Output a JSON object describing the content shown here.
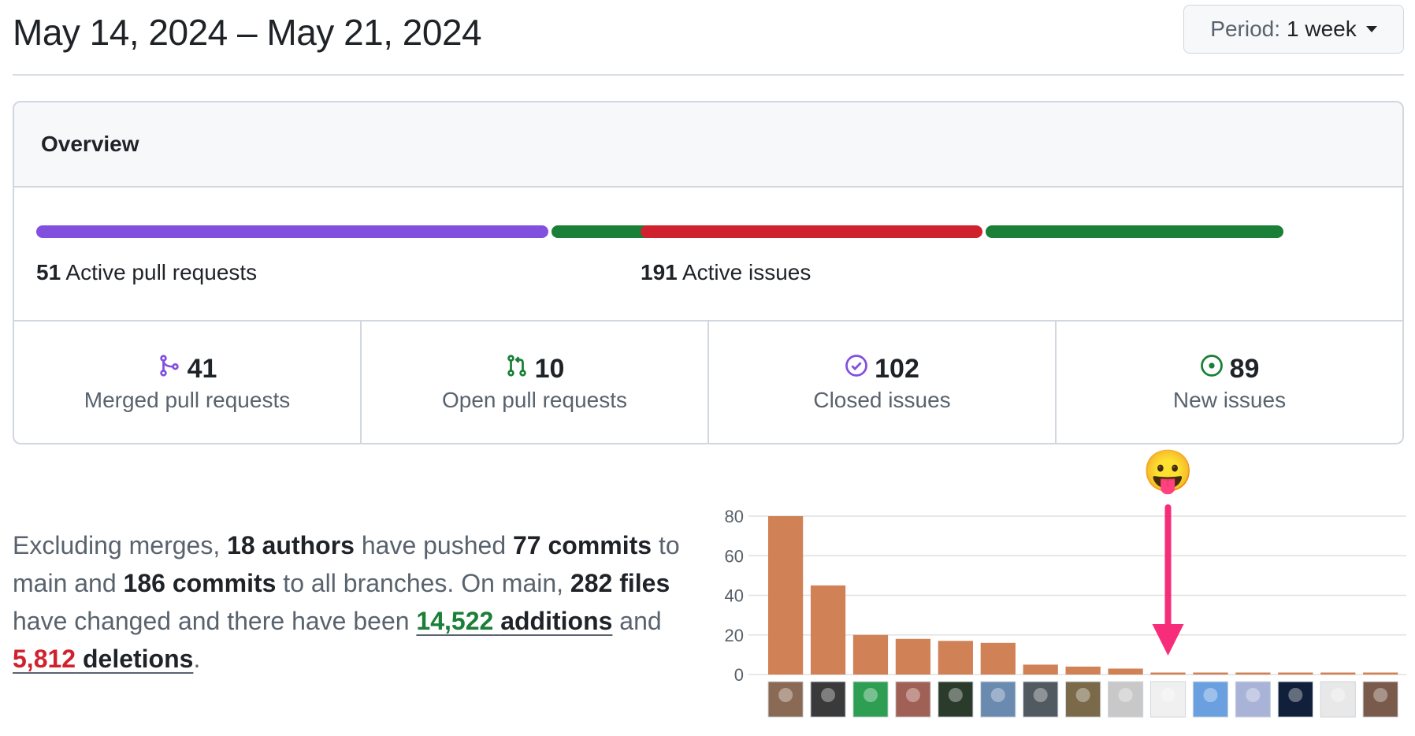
{
  "header": {
    "title": "May 14, 2024 – May 21, 2024",
    "period_label": "Period:",
    "period_value": "1 week"
  },
  "overview": {
    "title": "Overview",
    "pull_requests": {
      "count": "51",
      "label": "Active pull requests",
      "merged_fraction": 0.8,
      "colors": {
        "merged": "#8250df",
        "open": "#1a7f37"
      }
    },
    "issues": {
      "count": "191",
      "label": "Active issues",
      "closed_fraction": 0.534,
      "colors": {
        "closed": "#cf222e",
        "new": "#1a7f37"
      }
    },
    "stats": [
      {
        "icon": "merged-pr-icon",
        "value": "41",
        "label": "Merged pull requests",
        "color": "#8250df"
      },
      {
        "icon": "open-pr-icon",
        "value": "10",
        "label": "Open pull requests",
        "color": "#1a7f37"
      },
      {
        "icon": "closed-issue-icon",
        "value": "102",
        "label": "Closed issues",
        "color": "#8250df"
      },
      {
        "icon": "new-issue-icon",
        "value": "89",
        "label": "New issues",
        "color": "#1a7f37"
      }
    ]
  },
  "summary": {
    "t1": "Excluding merges, ",
    "authors": "18 authors",
    "t2": " have pushed ",
    "commits_main": "77 commits",
    "t3": " to main and ",
    "commits_all": "186 commits",
    "t4": " to all branches. On main, ",
    "files": "282 files",
    "t5": " have changed and there have been ",
    "additions_num": "14,522",
    "additions_word": "additions",
    "t6": " and ",
    "deletions_num": "5,812",
    "deletions_word": "deletions",
    "t7": "."
  },
  "chart_data": {
    "type": "bar",
    "bar_color": "#d08155",
    "y_ticks": [
      "0",
      "20",
      "40",
      "60",
      "80"
    ],
    "ylim": [
      0,
      80
    ],
    "values": [
      80,
      45,
      20,
      18,
      17,
      16,
      5,
      4,
      3,
      1,
      1,
      1,
      1,
      1,
      1
    ],
    "annotation_emoji": "😛",
    "annotation_color": "#f72d7a",
    "avatar_colors": [
      "#8a6a55",
      "#3a3a3a",
      "#2e9e53",
      "#a06055",
      "#2b3b2b",
      "#6a8ab0",
      "#505a60",
      "#7a6a4a",
      "#c8c8c8",
      "#f0f0f0",
      "#6aa0e0",
      "#a9b3d8",
      "#10203a",
      "#e8e8e8",
      "#7a5a4a"
    ]
  }
}
